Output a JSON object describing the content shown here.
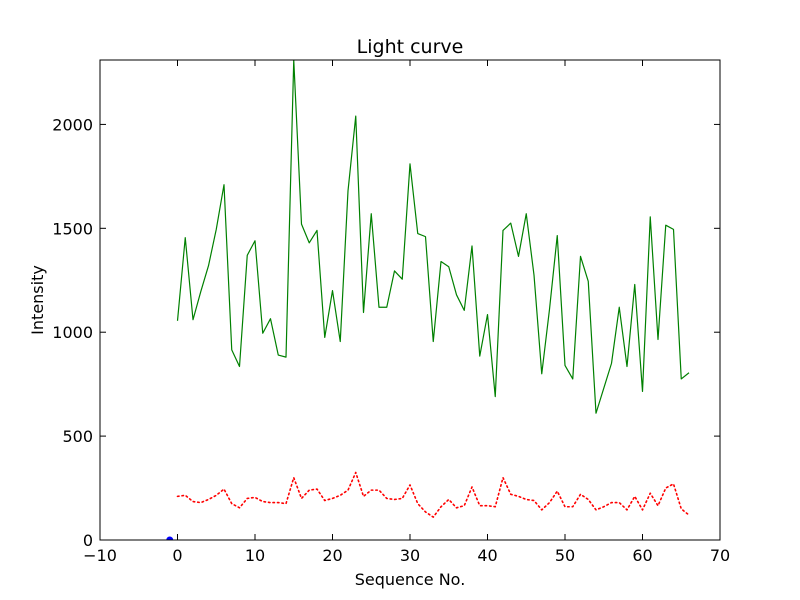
{
  "chart_data": {
    "type": "line",
    "title": "Light curve",
    "xlabel": "Sequence No.",
    "ylabel": "Intensity",
    "xlim": [
      -10,
      70
    ],
    "ylim": [
      0,
      2310
    ],
    "xticks": [
      -10,
      0,
      10,
      20,
      30,
      40,
      50,
      60,
      70
    ],
    "yticks": [
      0,
      500,
      1000,
      1500,
      2000
    ],
    "grid": false,
    "series": [
      {
        "style": "solid",
        "color": "#008000",
        "x": [
          0,
          1,
          2,
          3,
          4,
          5,
          6,
          7,
          8,
          9,
          10,
          11,
          12,
          13,
          14,
          15,
          16,
          17,
          18,
          19,
          20,
          21,
          22,
          23,
          24,
          25,
          26,
          27,
          28,
          29,
          30,
          31,
          32,
          33,
          34,
          35,
          36,
          37,
          38,
          39,
          40,
          41,
          42,
          43,
          44,
          45,
          46,
          47,
          48,
          49,
          50,
          51,
          52,
          53,
          54,
          55,
          56,
          57,
          58,
          59,
          60,
          61,
          62,
          63,
          64,
          65,
          66
        ],
        "y": [
          1055,
          1455,
          1060,
          1195,
          1320,
          1495,
          1710,
          915,
          835,
          1370,
          1440,
          995,
          1065,
          890,
          880,
          2310,
          1520,
          1430,
          1490,
          975,
          1200,
          955,
          1680,
          2040,
          1095,
          1570,
          1120,
          1120,
          1295,
          1255,
          1810,
          1475,
          1460,
          955,
          1340,
          1315,
          1180,
          1105,
          1415,
          885,
          1085,
          690,
          1490,
          1525,
          1365,
          1570,
          1275,
          800,
          1110,
          1465,
          840,
          775,
          1365,
          1245,
          610,
          730,
          850,
          1120,
          835,
          1230,
          715,
          1555,
          965,
          1515,
          1495,
          775,
          805
        ]
      },
      {
        "style": "dotted",
        "color": "#ff0000",
        "x": [
          0,
          1,
          2,
          3,
          4,
          5,
          6,
          7,
          8,
          9,
          10,
          11,
          12,
          13,
          14,
          15,
          16,
          17,
          18,
          19,
          20,
          21,
          22,
          23,
          24,
          25,
          26,
          27,
          28,
          29,
          30,
          31,
          32,
          33,
          34,
          35,
          36,
          37,
          38,
          39,
          40,
          41,
          42,
          43,
          44,
          45,
          46,
          47,
          48,
          49,
          50,
          51,
          52,
          53,
          54,
          55,
          56,
          57,
          58,
          59,
          60,
          61,
          62,
          63,
          64,
          65,
          66
        ],
        "y": [
          210,
          215,
          185,
          180,
          195,
          215,
          245,
          175,
          155,
          200,
          205,
          185,
          180,
          180,
          175,
          300,
          200,
          240,
          245,
          190,
          200,
          215,
          240,
          325,
          210,
          240,
          240,
          200,
          195,
          200,
          265,
          175,
          135,
          110,
          160,
          195,
          155,
          165,
          255,
          165,
          165,
          160,
          300,
          220,
          210,
          195,
          190,
          145,
          180,
          235,
          160,
          160,
          220,
          195,
          145,
          160,
          180,
          180,
          145,
          210,
          145,
          225,
          165,
          250,
          270,
          150,
          120
        ]
      },
      {
        "style": "marker",
        "color": "#0000ff",
        "x": [
          -1
        ],
        "y": [
          0
        ]
      }
    ]
  }
}
